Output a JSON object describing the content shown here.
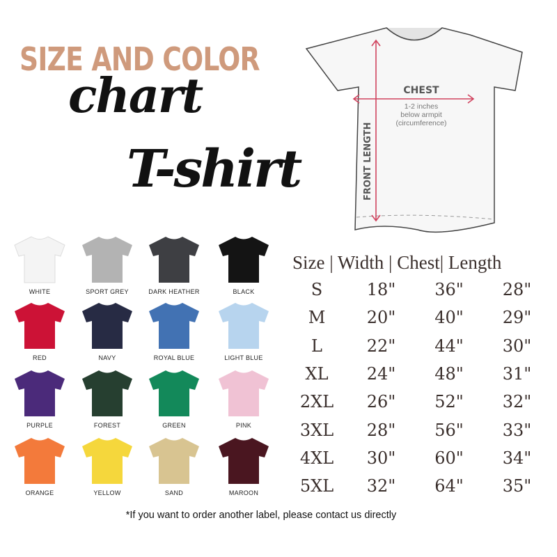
{
  "title": {
    "line1": "SIZE AND COLOR",
    "line2": "chart",
    "line3": "T-shirt"
  },
  "diagram": {
    "chest_label": "CHEST",
    "chest_note": [
      "1-2 inches",
      "below armpit",
      "(circumference)"
    ],
    "length_label": "FRONT LENGTH",
    "arrow_color": "#d0435e"
  },
  "colors": [
    {
      "name": "WHITE",
      "hex": "#f4f4f4"
    },
    {
      "name": "SPORT GREY",
      "hex": "#b3b3b3"
    },
    {
      "name": "DARK HEATHER",
      "hex": "#3e3f43"
    },
    {
      "name": "BLACK",
      "hex": "#141414"
    },
    {
      "name": "RED",
      "hex": "#cc1236"
    },
    {
      "name": "NAVY",
      "hex": "#272b44"
    },
    {
      "name": "ROYAL BLUE",
      "hex": "#4272b3"
    },
    {
      "name": "LIGHT BLUE",
      "hex": "#b7d4ee"
    },
    {
      "name": "PURPLE",
      "hex": "#4b2a7a"
    },
    {
      "name": "FOREST",
      "hex": "#263f30"
    },
    {
      "name": "GREEN",
      "hex": "#13895a"
    },
    {
      "name": "PINK",
      "hex": "#f0c2d4"
    },
    {
      "name": "ORANGE",
      "hex": "#f37a3b"
    },
    {
      "name": "YELLOW",
      "hex": "#f5d73c"
    },
    {
      "name": "SAND",
      "hex": "#d8c491"
    },
    {
      "name": "MAROON",
      "hex": "#4a1620"
    }
  ],
  "size_table": {
    "header": "Size | Width | Chest| Length",
    "rows": [
      [
        "S",
        "18\"",
        "36\"",
        "28\""
      ],
      [
        "M",
        "20\"",
        "40\"",
        "29\""
      ],
      [
        "L",
        "22\"",
        "44\"",
        "30\""
      ],
      [
        "XL",
        "24\"",
        "48\"",
        "31\""
      ],
      [
        "2XL",
        "26\"",
        "52\"",
        "32\""
      ],
      [
        "3XL",
        "28\"",
        "56\"",
        "33\""
      ],
      [
        "4XL",
        "30\"",
        "60\"",
        "34\""
      ],
      [
        "5XL",
        "32\"",
        "64\"",
        "35\""
      ]
    ]
  },
  "footer_note": "*If you want to order another label, please contact us directly"
}
